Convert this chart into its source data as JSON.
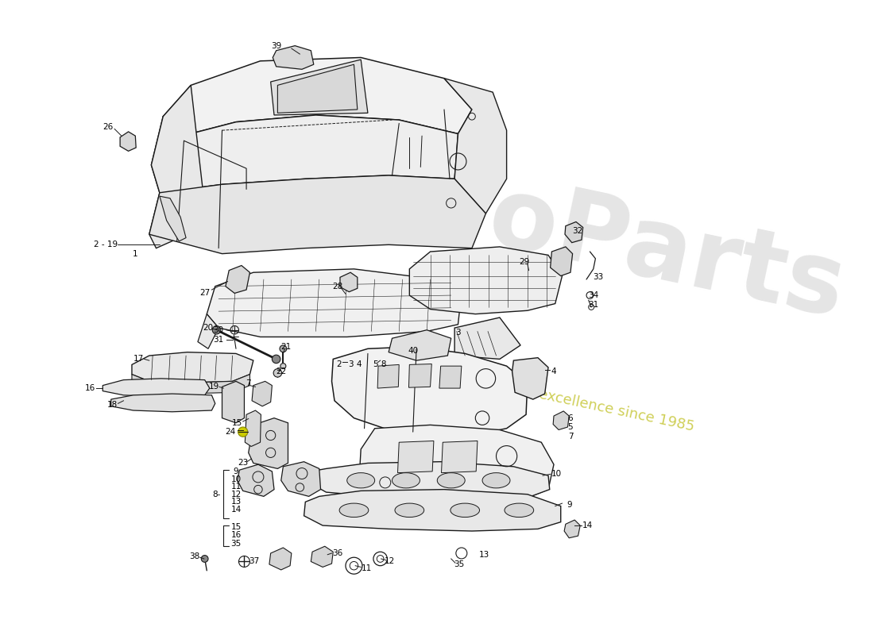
{
  "background_color": "#ffffff",
  "line_color": "#1a1a1a",
  "watermark_color1": "#cccccc",
  "watermark_color2": "#cccc00",
  "fig_width": 11.0,
  "fig_height": 8.0,
  "dpi": 100
}
